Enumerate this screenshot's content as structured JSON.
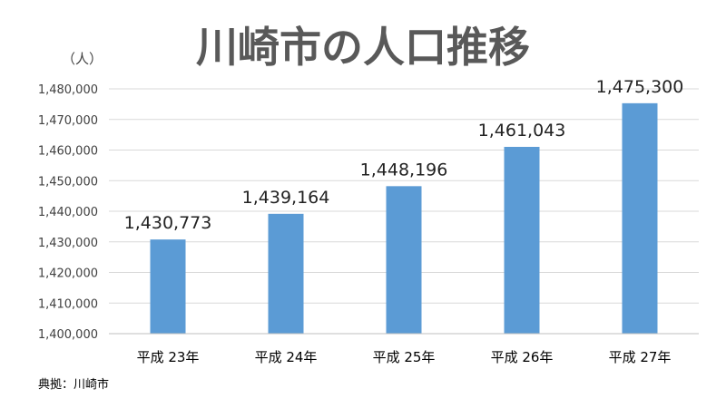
{
  "chart_data": {
    "type": "bar",
    "title": "川崎市の人口推移",
    "ylabel": "（人）",
    "xlabel": "",
    "categories": [
      "平成 23年",
      "平成 24年",
      "平成 25年",
      "平成 26年",
      "平成 27年"
    ],
    "values": [
      1430773,
      1439164,
      1448196,
      1461043,
      1475300
    ],
    "data_labels": [
      "1,430,773",
      "1,439,164",
      "1,448,196",
      "1,461,043",
      "1,475,300"
    ],
    "ylim": [
      1400000,
      1480000
    ],
    "yticks": [
      1400000,
      1410000,
      1420000,
      1430000,
      1440000,
      1450000,
      1460000,
      1470000,
      1480000
    ],
    "ytick_labels": [
      "1,400,000",
      "1,410,000",
      "1,420,000",
      "1,430,000",
      "1,440,000",
      "1,450,000",
      "1,460,000",
      "1,470,000",
      "1,480,000"
    ],
    "grid": true,
    "legend": "none",
    "bar_color": "#5b9bd5",
    "source": "典拠：川崎市"
  }
}
